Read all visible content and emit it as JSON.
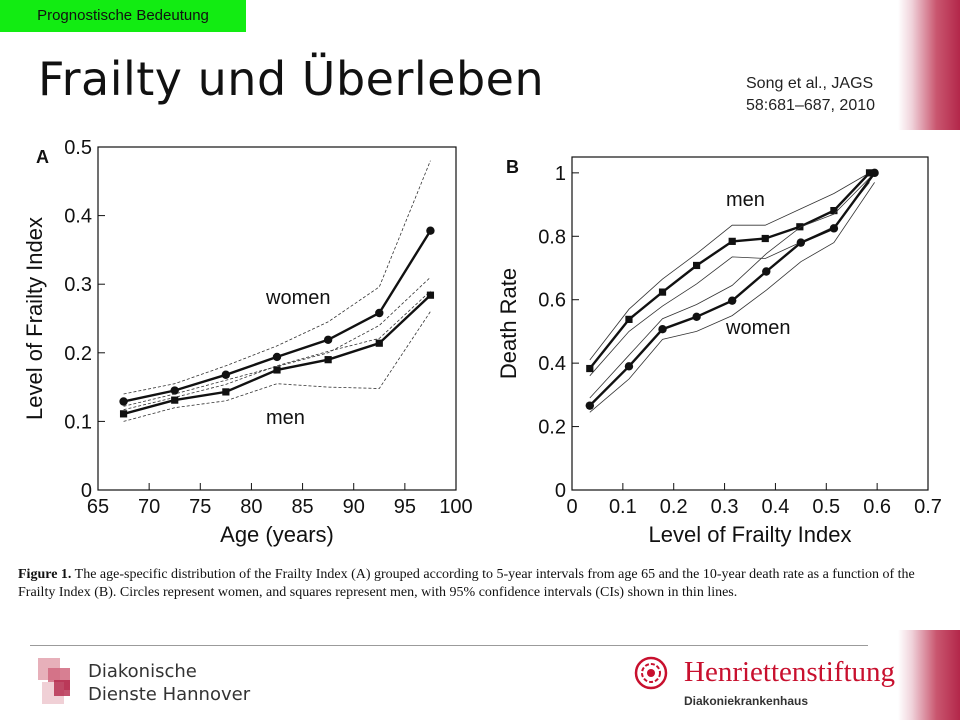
{
  "header": {
    "section_tag": "Prognostische Bedeutung",
    "slide_title": "Frailty und Überleben",
    "reference_line1": "Song et al., JAGS",
    "reference_line2": "58:681–687, 2010"
  },
  "chart_data": [
    {
      "type": "line",
      "panel": "A",
      "xlabel": "Age (years)",
      "ylabel": "Level of Frailty Index",
      "xlim": [
        65,
        100
      ],
      "ylim": [
        0,
        0.5
      ],
      "xticks": [
        65,
        70,
        75,
        80,
        85,
        90,
        95,
        100
      ],
      "xtick_labels": [
        "65",
        "70",
        "75",
        "80",
        "85",
        "90",
        "95",
        "100"
      ],
      "yticks": [
        0,
        0.1,
        0.2,
        0.3,
        0.4,
        0.5
      ],
      "ytick_labels": [
        "0",
        "0.1",
        "0.2",
        "0.3",
        "0.4",
        "0.5"
      ],
      "grid": false,
      "series": [
        {
          "name": "women",
          "marker": "circle",
          "x": [
            67.5,
            72.5,
            77.5,
            82.5,
            87.5,
            92.5,
            97.5
          ],
          "values": [
            0.129,
            0.145,
            0.168,
            0.194,
            0.219,
            0.258,
            0.378
          ],
          "ci_lower": [
            0.117,
            0.135,
            0.154,
            0.181,
            0.202,
            0.221,
            0.29
          ],
          "ci_upper": [
            0.14,
            0.155,
            0.181,
            0.21,
            0.245,
            0.296,
            0.48
          ]
        },
        {
          "name": "men",
          "marker": "square",
          "x": [
            67.5,
            72.5,
            77.5,
            82.5,
            87.5,
            92.5,
            97.5
          ],
          "values": [
            0.111,
            0.131,
            0.143,
            0.175,
            0.19,
            0.214,
            0.284
          ],
          "ci_lower": [
            0.1,
            0.12,
            0.13,
            0.155,
            0.15,
            0.148,
            0.26
          ],
          "ci_upper": [
            0.122,
            0.14,
            0.16,
            0.18,
            0.2,
            0.24,
            0.31
          ]
        }
      ]
    },
    {
      "type": "line",
      "panel": "B",
      "xlabel": "Level of Frailty Index",
      "ylabel": "Death Rate",
      "xlim": [
        0,
        0.7
      ],
      "ylim": [
        0,
        1.05
      ],
      "xticks": [
        0,
        0.1,
        0.2,
        0.3,
        0.4,
        0.5,
        0.6,
        0.7
      ],
      "xtick_labels": [
        "0",
        "0.1",
        "0.2",
        "0.3",
        "0.4",
        "0.5",
        "0.6",
        "0.7"
      ],
      "yticks": [
        0,
        0.2,
        0.4,
        0.6,
        0.8,
        1.0
      ],
      "ytick_labels": [
        "0",
        "0.2",
        "0.4",
        "0.6",
        "0.8",
        "1"
      ],
      "grid": false,
      "series": [
        {
          "name": "men",
          "marker": "square",
          "x": [
            0.035,
            0.112,
            0.178,
            0.245,
            0.315,
            0.38,
            0.448,
            0.515,
            0.585
          ],
          "values": [
            0.383,
            0.538,
            0.624,
            0.708,
            0.784,
            0.793,
            0.83,
            0.881,
            1.0
          ],
          "ci_lower": [
            0.36,
            0.5,
            0.58,
            0.65,
            0.735,
            0.73,
            0.78,
            0.83,
            0.97
          ],
          "ci_upper": [
            0.41,
            0.57,
            0.665,
            0.745,
            0.835,
            0.835,
            0.885,
            0.935,
            1.0
          ]
        },
        {
          "name": "women",
          "marker": "circle",
          "x": [
            0.035,
            0.112,
            0.178,
            0.245,
            0.315,
            0.382,
            0.45,
            0.515,
            0.595
          ],
          "values": [
            0.266,
            0.39,
            0.507,
            0.546,
            0.597,
            0.689,
            0.78,
            0.825,
            1.0
          ],
          "ci_lower": [
            0.245,
            0.35,
            0.475,
            0.5,
            0.55,
            0.63,
            0.72,
            0.78,
            0.97
          ],
          "ci_upper": [
            0.29,
            0.425,
            0.54,
            0.585,
            0.645,
            0.745,
            0.83,
            0.87,
            1.0
          ]
        }
      ]
    }
  ],
  "caption": {
    "label": "Figure 1.",
    "text": "The age-specific distribution of the Frailty Index (A) grouped according to 5-year intervals from age 65 and the 10-year death rate as a function of the Frailty Index (B). Circles represent women, and squares represent men, with 95% confidence intervals (CIs) shown in thin lines."
  },
  "footer": {
    "org_left_line1": "Diakonische",
    "org_left_line2": "Dienste Hannover",
    "org_right_name": "Henriettenstiftung",
    "org_right_sub": "Diakoniekrankenhaus"
  },
  "colors": {
    "tag_green": "#12ec12",
    "brand_red": "#c8102e",
    "band_crimson": "#b3274a"
  }
}
